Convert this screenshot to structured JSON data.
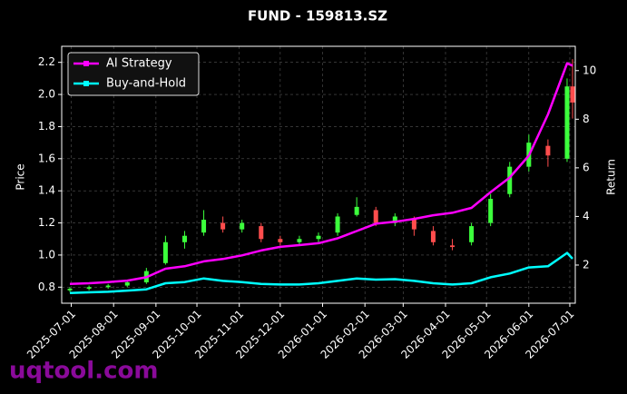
{
  "chart_data": {
    "type": "candlestick",
    "title": "FUND - 159813.SZ",
    "ylabel": "Price",
    "y2label": "Return",
    "watermark": "uqtool.com",
    "grid": true,
    "legend": "upper left",
    "x": [
      "2025-06-30",
      "2025-07-14",
      "2025-07-28",
      "2025-08-11",
      "2025-08-25",
      "2025-09-08",
      "2025-09-22",
      "2025-10-06",
      "2025-10-20",
      "2025-11-03",
      "2025-11-17",
      "2025-12-01",
      "2025-12-15",
      "2025-12-29",
      "2026-01-12",
      "2026-01-26",
      "2026-02-09",
      "2026-02-23",
      "2026-03-09",
      "2026-03-23",
      "2026-04-06",
      "2026-04-20",
      "2026-05-04",
      "2026-05-18",
      "2026-06-01",
      "2026-06-15",
      "2026-06-29",
      "2026-07-03"
    ],
    "xlim": [
      "2025-06-24",
      "2026-07-05"
    ],
    "xticks": [
      "2025-07-01",
      "2025-08-01",
      "2025-09-01",
      "2025-10-01",
      "2025-11-01",
      "2025-12-01",
      "2026-01-01",
      "2026-02-01",
      "2026-03-01",
      "2026-04-01",
      "2026-05-01",
      "2026-06-01",
      "2026-07-01"
    ],
    "ohlc": {
      "up_color": "#3cff3c",
      "down_color": "#ff4d4d",
      "open": [
        0.78,
        0.79,
        0.8,
        0.81,
        0.83,
        0.95,
        1.08,
        1.14,
        1.2,
        1.16,
        1.18,
        1.1,
        1.08,
        1.1,
        1.14,
        1.25,
        1.28,
        1.2,
        1.22,
        1.15,
        1.06,
        1.08,
        1.2,
        1.38,
        1.55,
        1.68,
        1.6,
        2.05
      ],
      "high": [
        0.8,
        0.81,
        0.82,
        0.84,
        0.92,
        1.12,
        1.15,
        1.28,
        1.24,
        1.22,
        1.2,
        1.12,
        1.12,
        1.14,
        1.26,
        1.36,
        1.3,
        1.26,
        1.24,
        1.18,
        1.1,
        1.2,
        1.38,
        1.58,
        1.75,
        1.72,
        2.1,
        2.22
      ],
      "low": [
        0.77,
        0.78,
        0.79,
        0.8,
        0.82,
        0.94,
        1.04,
        1.12,
        1.14,
        1.14,
        1.08,
        1.06,
        1.06,
        1.08,
        1.12,
        1.24,
        1.18,
        1.18,
        1.12,
        1.06,
        1.03,
        1.06,
        1.18,
        1.36,
        1.52,
        1.55,
        1.58,
        1.85
      ],
      "close": [
        0.79,
        0.8,
        0.81,
        0.83,
        0.9,
        1.08,
        1.12,
        1.22,
        1.16,
        1.2,
        1.1,
        1.08,
        1.1,
        1.12,
        1.24,
        1.3,
        1.2,
        1.24,
        1.16,
        1.08,
        1.05,
        1.18,
        1.35,
        1.55,
        1.7,
        1.62,
        2.05,
        1.95
      ]
    },
    "ylim": [
      0.7,
      2.3
    ],
    "yticks": [
      0.8,
      {
        "value": 1.0,
        "label": "1.0"
      },
      1.2,
      1.4,
      1.6,
      1.8,
      {
        "value": 2.0,
        "label": "2.0"
      },
      2.2
    ],
    "y2lim": [
      0.43,
      11.0
    ],
    "y2ticks": [
      2,
      4,
      6,
      8,
      10
    ],
    "series": [
      {
        "name": "AI Strategy",
        "color": "#ff00ff",
        "axis": "y2",
        "values": [
          1.22,
          1.25,
          1.3,
          1.36,
          1.5,
          1.85,
          1.95,
          2.15,
          2.25,
          2.4,
          2.6,
          2.75,
          2.82,
          2.9,
          3.1,
          3.4,
          3.7,
          3.78,
          3.9,
          4.05,
          4.15,
          4.35,
          5.0,
          5.6,
          6.5,
          8.2,
          10.3,
          10.2
        ]
      },
      {
        "name": "Buy-and-Hold",
        "color": "#00ffff",
        "axis": "y2",
        "values": [
          0.85,
          0.88,
          0.9,
          0.95,
          1.0,
          1.25,
          1.3,
          1.45,
          1.35,
          1.3,
          1.22,
          1.2,
          1.2,
          1.25,
          1.35,
          1.45,
          1.4,
          1.42,
          1.35,
          1.25,
          1.2,
          1.25,
          1.5,
          1.65,
          1.9,
          1.95,
          2.5,
          2.26
        ]
      }
    ]
  }
}
